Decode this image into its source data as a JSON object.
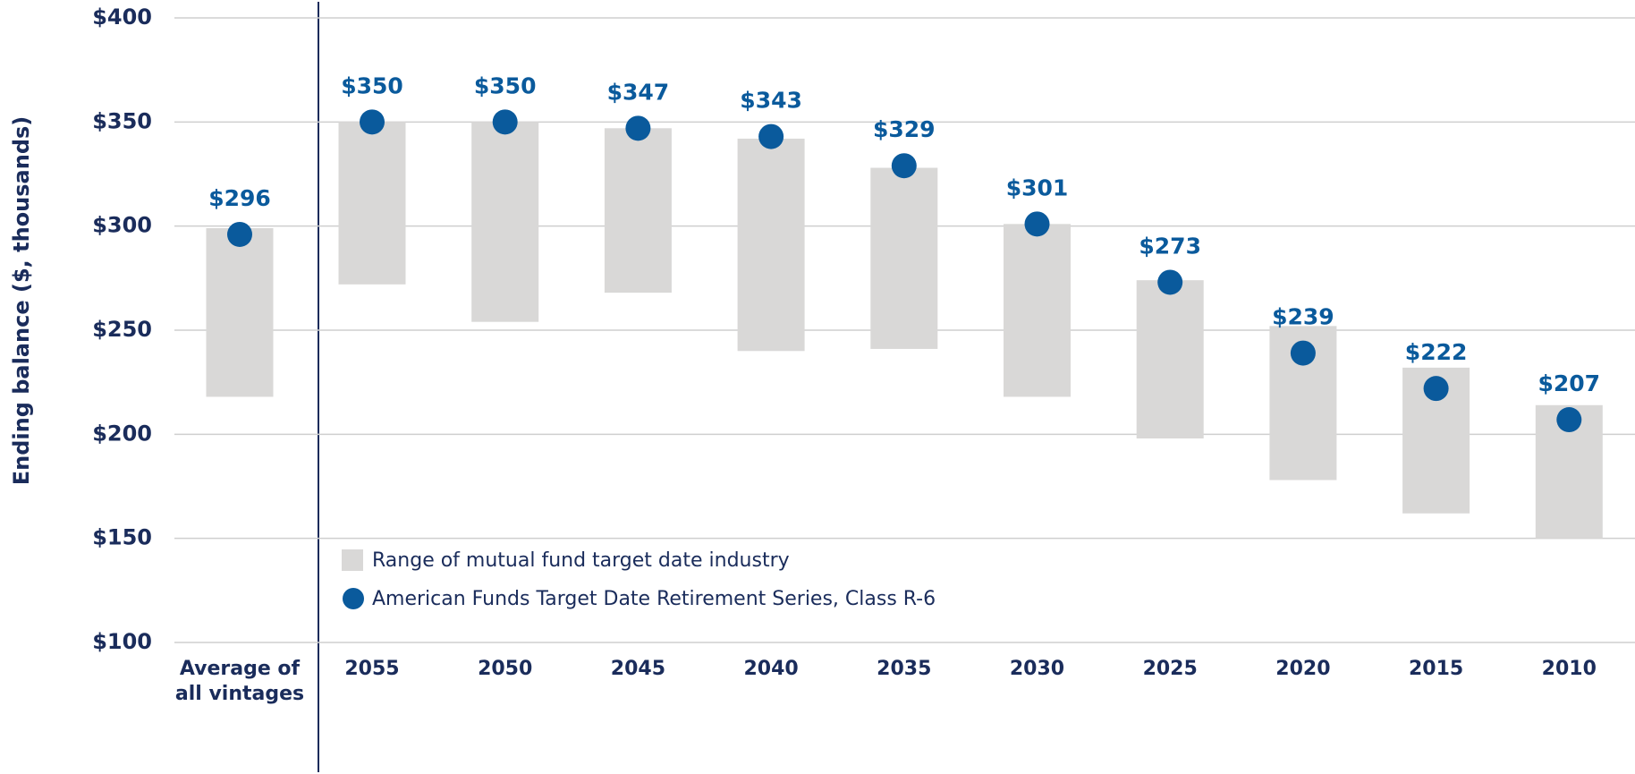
{
  "chart_data": {
    "type": "range_dot",
    "y_label": "Ending balance ($, thousands)",
    "categories": [
      "Average of all vintages",
      "2055",
      "2050",
      "2045",
      "2040",
      "2035",
      "2030",
      "2025",
      "2020",
      "2015",
      "2010"
    ],
    "range": {
      "name": "Range of mutual fund target date industry",
      "color": "#d9d8d7",
      "low": [
        218,
        272,
        254,
        268,
        240,
        241,
        218,
        198,
        178,
        162,
        150
      ],
      "high": [
        299,
        350,
        350,
        347,
        342,
        328,
        301,
        274,
        252,
        232,
        214
      ]
    },
    "dots": {
      "name": "American Funds Target Date Retirement Series, Class R-6",
      "color": "#0a5a9c",
      "values": [
        296,
        350,
        350,
        347,
        343,
        329,
        301,
        273,
        239,
        222,
        207
      ],
      "value_labels": [
        "$296",
        "$350",
        "$350",
        "$347",
        "$343",
        "$329",
        "$301",
        "$273",
        "$239",
        "$222",
        "$207"
      ]
    },
    "ylim": [
      100,
      400
    ],
    "yticks": [
      {
        "value": 100,
        "label": "$100"
      },
      {
        "value": 150,
        "label": "$150"
      },
      {
        "value": 200,
        "label": "$200"
      },
      {
        "value": 250,
        "label": "$250"
      },
      {
        "value": 300,
        "label": "$300"
      },
      {
        "value": 350,
        "label": "$350"
      },
      {
        "value": 400,
        "label": "$400"
      }
    ],
    "grid": true
  }
}
